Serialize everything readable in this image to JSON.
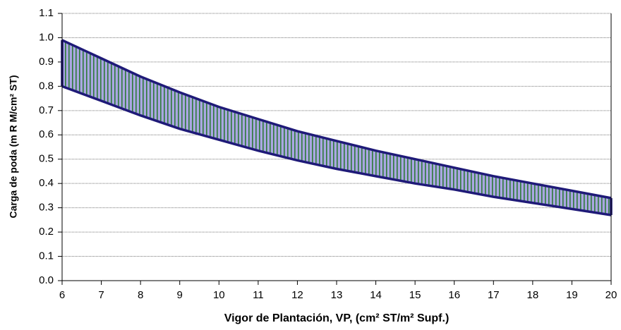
{
  "chart_data": {
    "type": "range",
    "x_label": "Vigor de Plantación, VP, (cm² ST/m² Supf.)",
    "y_label": "Carga de poda (m R M/cm² ST)",
    "x": [
      6,
      7,
      8,
      9,
      10,
      11,
      12,
      13,
      14,
      15,
      16,
      17,
      18,
      19,
      20
    ],
    "series": [
      {
        "color": "#1f1a78",
        "values": [
          0.99,
          0.915,
          0.84,
          0.775,
          0.715,
          0.665,
          0.615,
          0.575,
          0.535,
          0.5,
          0.465,
          0.43,
          0.4,
          0.37,
          0.34
        ]
      },
      {
        "color": "#1f1a78",
        "values": [
          0.8,
          0.74,
          0.68,
          0.625,
          0.58,
          0.535,
          0.495,
          0.46,
          0.43,
          0.4,
          0.375,
          0.345,
          0.32,
          0.295,
          0.27
        ]
      }
    ],
    "fill_color": "#aaa6e2",
    "hatch_color": "#2e7a3a",
    "xlim": [
      6,
      20
    ],
    "xticks": [
      6,
      7,
      8,
      9,
      10,
      11,
      12,
      13,
      14,
      15,
      16,
      17,
      18,
      19,
      20
    ],
    "ylim": [
      0,
      1.1
    ],
    "yticks": [
      {
        "value": 0,
        "label": "0.0"
      },
      0.1,
      0.2,
      0.3,
      0.4,
      0.5,
      0.6,
      0.7,
      0.8,
      0.9,
      {
        "value": 1,
        "label": "1.0"
      },
      1.1
    ],
    "grid": true
  }
}
